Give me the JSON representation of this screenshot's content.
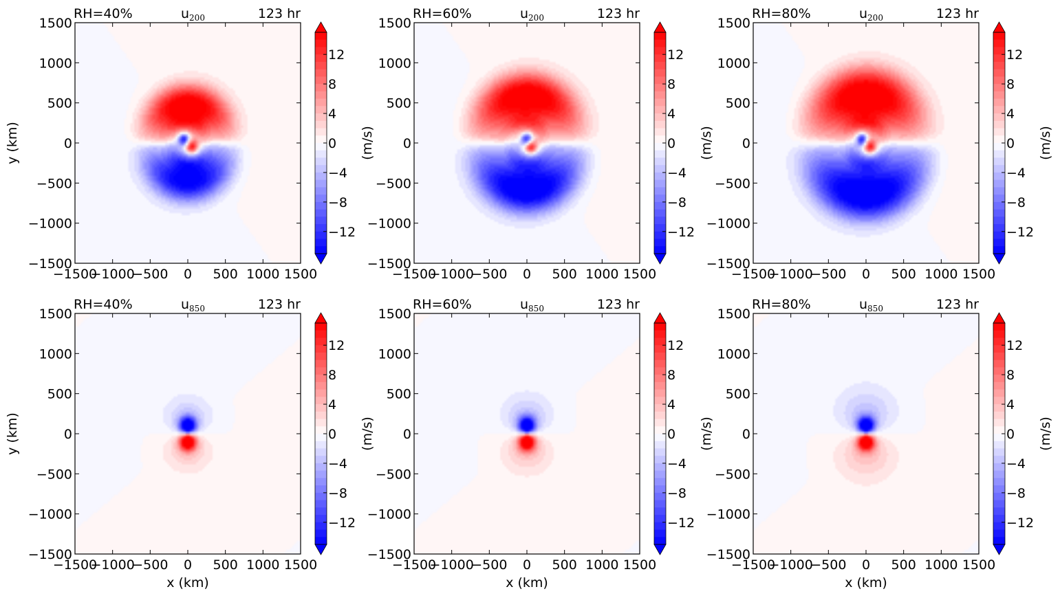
{
  "chart_data": {
    "type": "heatmap",
    "description": "Filled contour maps of zonal wind u anomaly around a vortex center for three RH values at two pressure levels",
    "time_label": "123 hr",
    "xlabel": "x (km)",
    "ylabel": "y (km)",
    "xlim": [
      -1500,
      1500
    ],
    "ylim": [
      -1500,
      1500
    ],
    "x_ticks": [
      "−1500",
      "−1000",
      "−500",
      "0",
      "500",
      "1000",
      "1500"
    ],
    "y_ticks": [
      "1500",
      "1000",
      "500",
      "0",
      "−500",
      "−1000",
      "−1500"
    ],
    "x_tick_values": [
      -1500,
      -1000,
      -500,
      0,
      500,
      1000,
      1500
    ],
    "y_tick_values": [
      1500,
      1000,
      500,
      0,
      -500,
      -1000,
      -1500
    ],
    "colorbar": {
      "label": "(m/s)",
      "range": [
        -15,
        15
      ],
      "extend": "both",
      "levels_step": 1,
      "ticks": [
        12,
        8,
        4,
        0,
        -4,
        -8,
        -12
      ],
      "tick_labels": [
        "12",
        "8",
        "4",
        "0",
        "−4",
        "−8",
        "−12"
      ],
      "colormap": "bwr",
      "neg_color": "#0000ff",
      "pos_color": "#ff0000",
      "mid_color": "#ffffff"
    },
    "panels": [
      {
        "rh": "RH=40%",
        "var": "u",
        "level": "200",
        "time": "123 hr",
        "row": 0,
        "col": 0,
        "features": {
          "pos_arc": {
            "cx": 0,
            "cy": 500,
            "max": 15
          },
          "neg_arc": {
            "cx": 0,
            "cy": -500,
            "max": -14
          },
          "core_neg": {
            "x": -50,
            "y": 50
          },
          "core_pos": {
            "x": 50,
            "y": -50
          },
          "extent_km": 750
        }
      },
      {
        "rh": "RH=60%",
        "var": "u",
        "level": "200",
        "time": "123 hr",
        "row": 0,
        "col": 1,
        "features": {
          "pos_arc": {
            "cx": 0,
            "cy": 600,
            "max": 15
          },
          "neg_arc": {
            "cx": 0,
            "cy": -600,
            "max": -15
          },
          "core_neg": {
            "x": 0,
            "y": 50
          },
          "core_pos": {
            "x": 50,
            "y": -50
          },
          "extent_km": 900
        }
      },
      {
        "rh": "RH=80%",
        "var": "u",
        "level": "200",
        "time": "123 hr",
        "row": 0,
        "col": 2,
        "features": {
          "pos_arc": {
            "cx": 0,
            "cy": 600,
            "max": 15
          },
          "neg_arc": {
            "cx": 0,
            "cy": -650,
            "max": -15
          },
          "core_neg": {
            "x": -50,
            "y": 50
          },
          "core_pos": {
            "x": 50,
            "y": -50
          },
          "extent_km": 1000
        }
      },
      {
        "rh": "RH=40%",
        "var": "u",
        "level": "850",
        "time": "123 hr",
        "row": 1,
        "col": 0,
        "features": {
          "neg_lobe": {
            "cx": 0,
            "cy": 100,
            "max": -15
          },
          "pos_lobe": {
            "cx": 0,
            "cy": -100,
            "max": 15
          },
          "extent_km": 700
        }
      },
      {
        "rh": "RH=60%",
        "var": "u",
        "level": "850",
        "time": "123 hr",
        "row": 1,
        "col": 1,
        "features": {
          "neg_lobe": {
            "cx": 0,
            "cy": 100,
            "max": -15
          },
          "pos_lobe": {
            "cx": 0,
            "cy": -100,
            "max": 15
          },
          "extent_km": 750
        }
      },
      {
        "rh": "RH=80%",
        "var": "u",
        "level": "850",
        "time": "123 hr",
        "row": 1,
        "col": 2,
        "features": {
          "neg_lobe": {
            "cx": 0,
            "cy": 100,
            "max": -15
          },
          "pos_lobe": {
            "cx": 0,
            "cy": -100,
            "max": 15
          },
          "extent_km": 900
        }
      }
    ]
  }
}
